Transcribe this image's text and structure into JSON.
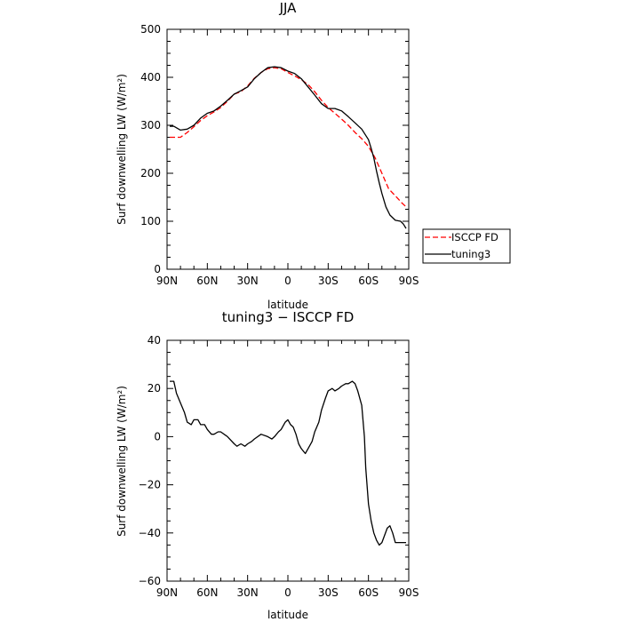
{
  "chart_data": [
    {
      "type": "line",
      "title": "JJA",
      "xlabel": "latitude",
      "ylabel": "Surf downwelling LW (W/m²)",
      "xlim": [
        90,
        -90
      ],
      "ylim": [
        0,
        500
      ],
      "x_ticks": [
        90,
        60,
        30,
        0,
        -30,
        -60,
        -90
      ],
      "x_tick_labels": [
        "90N",
        "60N",
        "30N",
        "0",
        "30S",
        "60S",
        "90S"
      ],
      "y_ticks": [
        0,
        100,
        200,
        300,
        400,
        500
      ],
      "y_tick_labels": [
        "0",
        "100",
        "200",
        "300",
        "400",
        "500"
      ],
      "legend": "outside-right",
      "series": [
        {
          "name": "ISCCP FD",
          "color": "#ff0000",
          "dash": "dashed",
          "x": [
            88,
            85,
            80,
            75,
            70,
            65,
            60,
            55,
            50,
            45,
            40,
            35,
            30,
            25,
            20,
            15,
            10,
            5,
            0,
            -5,
            -10,
            -15,
            -20,
            -25,
            -30,
            -35,
            -40,
            -45,
            -50,
            -55,
            -60,
            -65,
            -70,
            -75,
            -80,
            -85,
            -88
          ],
          "values": [
            275,
            275,
            275,
            285,
            297,
            310,
            320,
            328,
            337,
            350,
            365,
            370,
            382,
            398,
            410,
            418,
            420,
            418,
            410,
            403,
            395,
            385,
            370,
            352,
            337,
            325,
            313,
            300,
            285,
            272,
            256,
            232,
            200,
            168,
            153,
            138,
            130
          ]
        },
        {
          "name": "tuning3",
          "color": "#000000",
          "dash": "solid",
          "x": [
            88,
            85,
            80,
            75,
            70,
            65,
            60,
            55,
            50,
            45,
            40,
            35,
            30,
            25,
            20,
            15,
            10,
            5,
            0,
            -5,
            -10,
            -15,
            -20,
            -25,
            -30,
            -35,
            -40,
            -45,
            -50,
            -55,
            -60,
            -62,
            -64,
            -66,
            -68,
            -70,
            -73,
            -76,
            -80,
            -84,
            -86,
            -88
          ],
          "values": [
            298,
            298,
            290,
            292,
            300,
            315,
            325,
            330,
            340,
            352,
            365,
            372,
            380,
            397,
            410,
            420,
            422,
            420,
            413,
            408,
            397,
            380,
            363,
            345,
            335,
            335,
            330,
            318,
            305,
            292,
            270,
            252,
            232,
            205,
            180,
            158,
            130,
            113,
            102,
            100,
            94,
            85
          ]
        }
      ]
    },
    {
      "type": "line",
      "title": "tuning3 − ISCCP FD",
      "xlabel": "latitude",
      "ylabel": "Surf downwelling LW (W/m²)",
      "xlim": [
        90,
        -90
      ],
      "ylim": [
        -60,
        40
      ],
      "x_ticks": [
        90,
        60,
        30,
        0,
        -30,
        -60,
        -90
      ],
      "x_tick_labels": [
        "90N",
        "60N",
        "30N",
        "0",
        "30S",
        "60S",
        "90S"
      ],
      "y_ticks": [
        -60,
        -40,
        -20,
        0,
        20,
        40
      ],
      "y_tick_labels": [
        "−60",
        "−40",
        "−20",
        "0",
        "20",
        "40"
      ],
      "series": [
        {
          "color": "#000000",
          "dash": "solid",
          "x": [
            88,
            85,
            83,
            80,
            77,
            75,
            72,
            70,
            67,
            65,
            62,
            60,
            57,
            55,
            52,
            50,
            45,
            40,
            38,
            35,
            32,
            30,
            27,
            25,
            20,
            15,
            12,
            10,
            7,
            5,
            2,
            0,
            -2,
            -4,
            -6,
            -8,
            -10,
            -13,
            -15,
            -18,
            -20,
            -23,
            -25,
            -28,
            -30,
            -33,
            -35,
            -38,
            -40,
            -43,
            -45,
            -48,
            -50,
            -52,
            -55,
            -57,
            -58,
            -60,
            -62,
            -64,
            -66,
            -68,
            -70,
            -72,
            -74,
            -76,
            -78,
            -80,
            -82,
            -84,
            -86,
            -88
          ],
          "values": [
            23,
            23,
            18,
            14,
            10,
            6,
            5,
            7,
            7,
            5,
            5,
            3,
            1,
            1,
            2,
            2,
            0,
            -3,
            -4,
            -3,
            -4,
            -3,
            -2,
            -1,
            1,
            0,
            -1,
            0,
            2,
            3,
            6,
            7,
            5,
            4,
            1,
            -3,
            -5,
            -7,
            -5,
            -2,
            2,
            6,
            11,
            16,
            19,
            20,
            19,
            20,
            21,
            22,
            22,
            23,
            22,
            19,
            13,
            0,
            -13,
            -28,
            -35,
            -40,
            -43,
            -45,
            -44,
            -41,
            -38,
            -37,
            -40,
            -44,
            -44,
            -44,
            -44,
            -44
          ]
        }
      ]
    }
  ]
}
